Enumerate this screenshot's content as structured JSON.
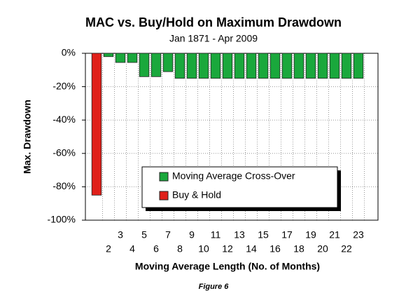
{
  "chart_data": {
    "type": "bar",
    "title": "MAC vs. Buy/Hold on Maximum Drawdown",
    "subtitle": "Jan 1871 - Apr 2009",
    "y_label": "Max. Drawdown",
    "x_label": "Moving Average Length (No. of Months)",
    "caption": "Figure 6",
    "categories": [
      null,
      "2",
      "3",
      "4",
      "5",
      "6",
      "7",
      "8",
      "9",
      "10",
      "11",
      "12",
      "13",
      "14",
      "15",
      "16",
      "17",
      "18",
      "19",
      "20",
      "21",
      "22",
      "23"
    ],
    "series": [
      {
        "name": "Moving Average Cross-Over",
        "color": "#1aa83c",
        "values": [
          null,
          -2,
          -5.5,
          -5.5,
          -14,
          -14,
          -11,
          -15,
          -15,
          -15,
          -15,
          -15,
          -15,
          -15,
          -15,
          -15,
          -15,
          -15,
          -15,
          -15,
          -15,
          -15,
          -15
        ]
      },
      {
        "name": "Buy & Hold",
        "color": "#e0201a",
        "values": [
          -85,
          null,
          null,
          null,
          null,
          null,
          null,
          null,
          null,
          null,
          null,
          null,
          null,
          null,
          null,
          null,
          null,
          null,
          null,
          null,
          null,
          null,
          null
        ]
      }
    ],
    "ylim": [
      -100,
      0
    ],
    "yticks": [
      {
        "value": 0,
        "label": "0%"
      },
      {
        "value": -20,
        "label": "-20%"
      },
      {
        "value": -40,
        "label": "-40%"
      },
      {
        "value": -60,
        "label": "-60%"
      },
      {
        "value": -80,
        "label": "-80%"
      },
      {
        "value": -100,
        "label": "-100%"
      }
    ],
    "grid": true
  }
}
